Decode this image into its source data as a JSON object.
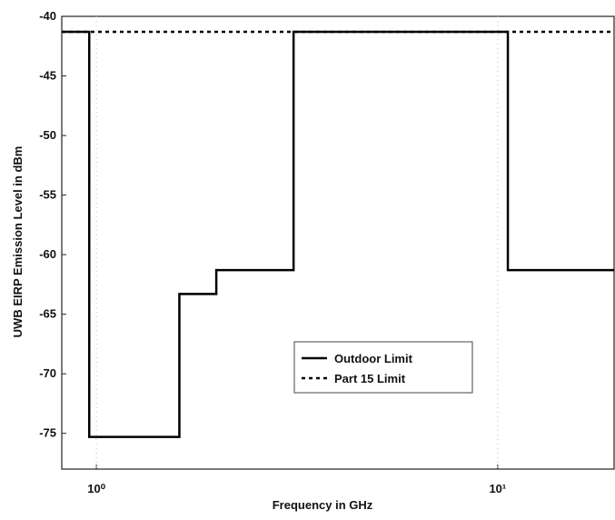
{
  "chart_data": {
    "type": "line",
    "xlabel": "Frequency in GHz",
    "ylabel": "UWB EIRP Emission Level in dBm",
    "xscale": "log",
    "xlim": [
      0.82,
      19.5
    ],
    "ylim": [
      -78,
      -40
    ],
    "xticks": [
      {
        "value": 1,
        "label": "10⁰"
      },
      {
        "value": 10,
        "label": "10¹"
      }
    ],
    "yticks": [
      -40,
      -45,
      -50,
      -55,
      -60,
      -65,
      -70,
      -75
    ],
    "grid": false,
    "legend": "lower center",
    "series": [
      {
        "name": "Outdoor Limit",
        "color": "#000000",
        "line_style": "solid",
        "x": [
          0.82,
          0.96,
          0.96,
          1.61,
          1.61,
          1.99,
          1.99,
          3.1,
          3.1,
          10.6,
          10.6,
          19.5
        ],
        "values": [
          -41.3,
          -41.3,
          -75.3,
          -75.3,
          -63.3,
          -63.3,
          -61.3,
          -61.3,
          -41.3,
          -41.3,
          -61.3,
          -61.3
        ]
      },
      {
        "name": "Part 15 Limit",
        "color": "#000000",
        "line_style": "dotted",
        "x": [
          0.82,
          19.5
        ],
        "values": [
          -41.3,
          -41.3
        ]
      }
    ]
  }
}
